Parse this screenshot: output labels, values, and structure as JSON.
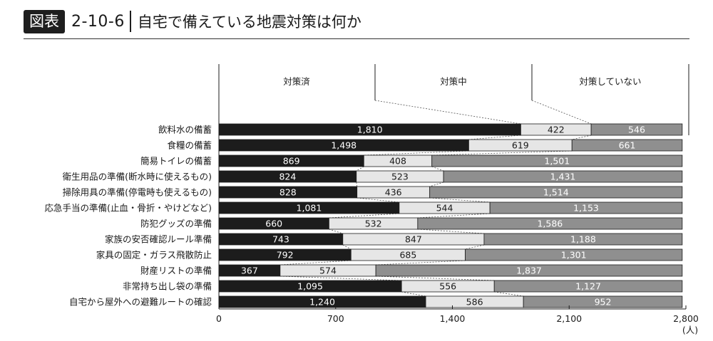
{
  "header": {
    "badge": "図表",
    "number": "2-10-6",
    "title": "自宅で備えている地震対策は何か"
  },
  "chart_data": {
    "type": "bar",
    "orientation": "horizontal",
    "stacked": true,
    "categories": [
      "飲料水の備蓄",
      "食糧の備蓄",
      "簡易トイレの備蓄",
      "衛生用品の準備(断水時に使えるもの)",
      "掃除用具の準備(停電時も使えるもの)",
      "応急手当の準備(止血・骨折・やけどなど)",
      "防犯グッズの準備",
      "家族の安否確認ルール準備",
      "家具の固定・ガラス飛散防止",
      "財産リストの準備",
      "非常持ち出し袋の準備",
      "自宅から屋外への避難ルートの確認"
    ],
    "series": [
      {
        "name": "対策済",
        "color": "#1c1c1c",
        "label_color": "#ffffff",
        "values": [
          1810,
          1498,
          869,
          824,
          828,
          1081,
          660,
          743,
          792,
          367,
          1095,
          1240
        ],
        "labels": [
          "1,810",
          "1,498",
          "869",
          "824",
          "828",
          "1,081",
          "660",
          "743",
          "792",
          "367",
          "1,095",
          "1,240"
        ]
      },
      {
        "name": "対策中",
        "color": "#e6e6e6",
        "label_color": "#1a1a1a",
        "values": [
          422,
          619,
          408,
          523,
          436,
          544,
          532,
          847,
          685,
          574,
          556,
          586
        ],
        "labels": [
          "422",
          "619",
          "408",
          "523",
          "436",
          "544",
          "532",
          "847",
          "685",
          "574",
          "556",
          "586"
        ]
      },
      {
        "name": "対策していない",
        "color": "#8f8f8f",
        "label_color": "#ffffff",
        "values": [
          546,
          661,
          1501,
          1431,
          1514,
          1153,
          1586,
          1188,
          1301,
          1837,
          1127,
          952
        ],
        "labels": [
          "546",
          "661",
          "1,501",
          "1,431",
          "1,514",
          "1,153",
          "1,586",
          "1,188",
          "1,301",
          "1,837",
          "1,127",
          "952"
        ]
      }
    ],
    "xlim": [
      0,
      2800
    ],
    "xticks": [
      0,
      700,
      1400,
      2100,
      2800
    ],
    "xtick_labels": [
      "0",
      "700",
      "1,400",
      "2,100",
      "2,800"
    ],
    "xunit": "(人)",
    "legend_placement": "top"
  }
}
